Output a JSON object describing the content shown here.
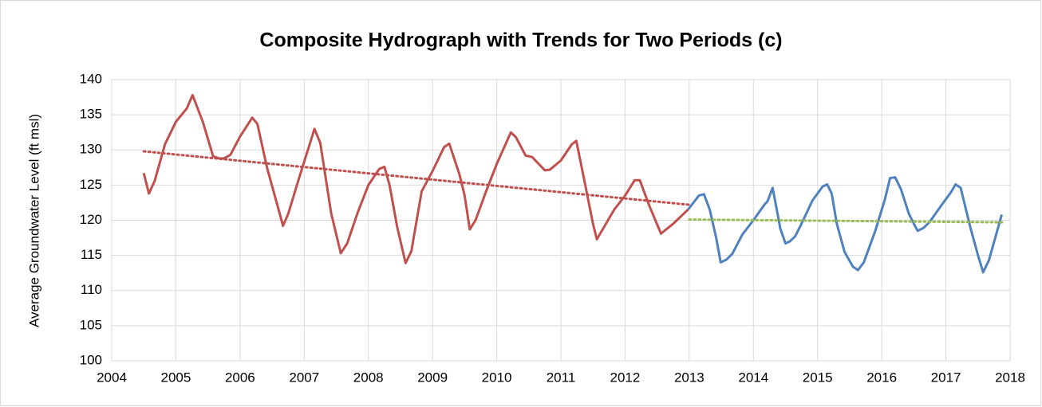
{
  "chart_data": {
    "type": "line",
    "title": "Composite Hydrograph with Trends for Two Periods (c)",
    "y_label": "Average Groundwater Level (ft msl)",
    "xlim": [
      2004,
      2018
    ],
    "xticks": [
      2004,
      2005,
      2006,
      2007,
      2008,
      2009,
      2010,
      2011,
      2012,
      2013,
      2014,
      2015,
      2016,
      2017,
      2018
    ],
    "ylim": [
      100,
      140
    ],
    "yticks": [
      100,
      105,
      110,
      115,
      120,
      125,
      130,
      135,
      140
    ],
    "grid": true,
    "series": [
      {
        "color": "#c0504d",
        "dash": "solid",
        "x": [
          2004.5,
          2004.58,
          2004.67,
          2004.83,
          2005.0,
          2005.17,
          2005.26,
          2005.42,
          2005.58,
          2005.67,
          2005.75,
          2005.85,
          2006.0,
          2006.19,
          2006.27,
          2006.42,
          2006.58,
          2006.67,
          2006.75,
          2006.92,
          2007.16,
          2007.25,
          2007.42,
          2007.57,
          2007.67,
          2007.83,
          2008.0,
          2008.17,
          2008.25,
          2008.33,
          2008.45,
          2008.58,
          2008.67,
          2008.83,
          2009.0,
          2009.18,
          2009.26,
          2009.42,
          2009.5,
          2009.58,
          2009.67,
          2009.83,
          2010.0,
          2010.22,
          2010.3,
          2010.45,
          2010.55,
          2010.75,
          2010.83,
          2011.0,
          2011.17,
          2011.24,
          2011.38,
          2011.5,
          2011.56,
          2011.67,
          2011.83,
          2012.0,
          2012.15,
          2012.23,
          2012.38,
          2012.56,
          2012.75,
          2012.98
        ],
        "values": [
          126.7,
          123.8,
          125.6,
          130.8,
          134.0,
          135.9,
          137.8,
          134.0,
          129.1,
          128.8,
          128.8,
          129.3,
          131.9,
          134.6,
          133.7,
          127.5,
          122.2,
          119.2,
          120.9,
          126.0,
          133.0,
          131.0,
          121.0,
          115.3,
          116.7,
          121.0,
          125.0,
          127.3,
          127.6,
          125.0,
          119.0,
          113.9,
          115.6,
          124.1,
          127.0,
          130.4,
          130.9,
          126.5,
          123.5,
          118.7,
          120.0,
          124.0,
          128.0,
          132.5,
          131.8,
          129.2,
          129.0,
          127.1,
          127.2,
          128.5,
          130.8,
          131.3,
          125.0,
          119.5,
          117.3,
          119.0,
          121.5,
          123.5,
          125.7,
          125.7,
          122.0,
          118.1,
          119.5,
          121.5
        ]
      },
      {
        "color": "#4f81bd",
        "dash": "solid",
        "x": [
          2012.98,
          2013.15,
          2013.23,
          2013.32,
          2013.42,
          2013.49,
          2013.58,
          2013.67,
          2013.83,
          2014.0,
          2014.17,
          2014.22,
          2014.3,
          2014.42,
          2014.5,
          2014.57,
          2014.65,
          2014.75,
          2014.92,
          2015.08,
          2015.15,
          2015.22,
          2015.3,
          2015.42,
          2015.55,
          2015.63,
          2015.72,
          2015.9,
          2016.05,
          2016.13,
          2016.21,
          2016.3,
          2016.42,
          2016.5,
          2016.56,
          2016.65,
          2016.75,
          2016.92,
          2017.08,
          2017.15,
          2017.23,
          2017.38,
          2017.5,
          2017.58,
          2017.67,
          2017.87
        ],
        "values": [
          121.5,
          123.5,
          123.7,
          121.5,
          117.5,
          114.0,
          114.4,
          115.2,
          118.0,
          120.0,
          122.2,
          122.7,
          124.6,
          118.8,
          116.7,
          117.0,
          117.7,
          119.5,
          122.8,
          124.8,
          125.1,
          123.8,
          119.5,
          115.5,
          113.4,
          112.9,
          114.0,
          118.5,
          123.0,
          126.0,
          126.1,
          124.4,
          121.0,
          119.5,
          118.5,
          118.9,
          119.8,
          122.0,
          124.0,
          125.1,
          124.6,
          119.0,
          115.0,
          112.6,
          114.3,
          120.8
        ]
      },
      {
        "color": "#c0504d",
        "dash": "dotted",
        "x": [
          2004.5,
          2013.0
        ],
        "values": [
          129.8,
          122.2
        ]
      },
      {
        "color": "#9bbb59",
        "dash": "dotted",
        "x": [
          2013.0,
          2017.9
        ],
        "values": [
          120.1,
          119.7
        ]
      }
    ]
  }
}
